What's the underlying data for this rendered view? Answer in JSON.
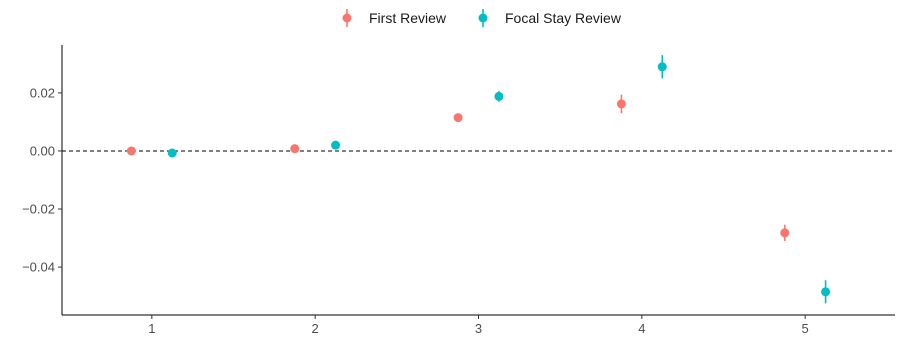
{
  "chart_data": {
    "type": "scatter",
    "title": "",
    "xlabel": "",
    "ylabel": "",
    "categories": [
      1,
      2,
      3,
      4,
      5
    ],
    "xlim": [
      0.45,
      5.55
    ],
    "ylim": [
      -0.0565,
      0.0365
    ],
    "x_ticks": [
      "1",
      "2",
      "3",
      "4",
      "5"
    ],
    "y_ticks": [
      {
        "value": 0.02,
        "label": "0.02"
      },
      {
        "value": 0.0,
        "label": "0.00"
      },
      {
        "value": -0.02,
        "label": "−0.02"
      },
      {
        "value": -0.04,
        "label": "−0.04"
      }
    ],
    "reference_line": {
      "y": 0,
      "style": "dashed"
    },
    "grid": false,
    "legend_position": "top",
    "series": [
      {
        "name": "First Review",
        "color": "#F8766D",
        "x": [
          0.875,
          1.875,
          2.875,
          3.875,
          4.875
        ],
        "y": [
          0.0,
          0.0008,
          0.0115,
          0.0162,
          -0.0282
        ],
        "lower": [
          -0.0005,
          0.0001,
          0.0105,
          0.013,
          -0.031
        ],
        "upper": [
          0.0005,
          0.0015,
          0.0125,
          0.0194,
          -0.0254
        ]
      },
      {
        "name": "Focal Stay Review",
        "color": "#00BFC4",
        "x": [
          1.125,
          2.125,
          3.125,
          4.125,
          5.125
        ],
        "y": [
          -0.0007,
          0.002,
          0.0188,
          0.029,
          -0.0485
        ],
        "lower": [
          -0.0015,
          0.001,
          0.017,
          0.025,
          -0.0525
        ],
        "upper": [
          0.0001,
          0.003,
          0.0206,
          0.033,
          -0.0445
        ]
      }
    ]
  }
}
